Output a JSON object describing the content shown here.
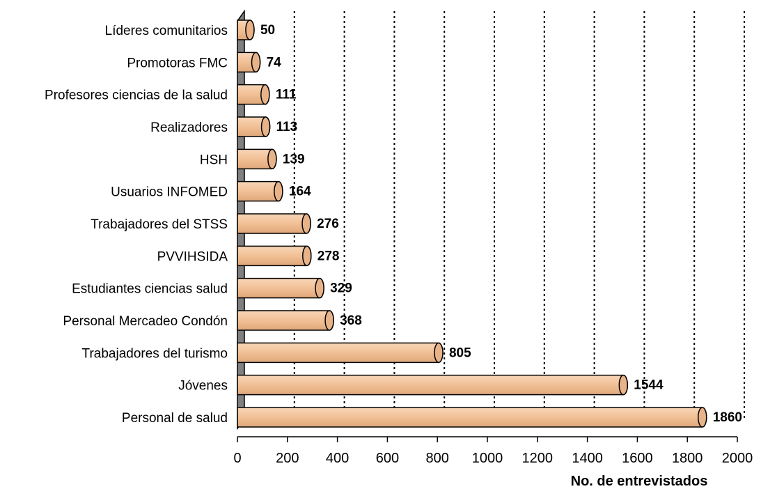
{
  "chart_data": {
    "type": "bar",
    "orientation": "horizontal",
    "categories": [
      "Personal de salud",
      "Jóvenes",
      "Trabajadores del turismo",
      "Personal Mercadeo Condón",
      "Estudiantes ciencias salud",
      "PVVIHSIDA",
      "Trabajadores del STSS",
      "Usuarios INFOMED",
      "HSH",
      "Realizadores",
      "Profesores ciencias de la salud",
      "Promotoras FMC",
      "Líderes comunitarios"
    ],
    "values": [
      1860,
      1544,
      805,
      368,
      329,
      278,
      276,
      164,
      139,
      113,
      111,
      74,
      50
    ],
    "data_labels": [
      "1860",
      "1544",
      "805",
      "368",
      "329",
      "278",
      "276",
      "164",
      "139",
      "113",
      "111",
      "74",
      "50"
    ],
    "xticks": [
      "0",
      "200",
      "400",
      "600",
      "800",
      "1000",
      "1200",
      "1400",
      "1600",
      "1800",
      "2000"
    ],
    "xlim": [
      0,
      2000
    ],
    "xlabel": "No. de entrevistados",
    "grid": "vertical dotted",
    "bar_color": "#f2c095",
    "bar_edge_color": "#000000",
    "wall_color": "#808080"
  }
}
